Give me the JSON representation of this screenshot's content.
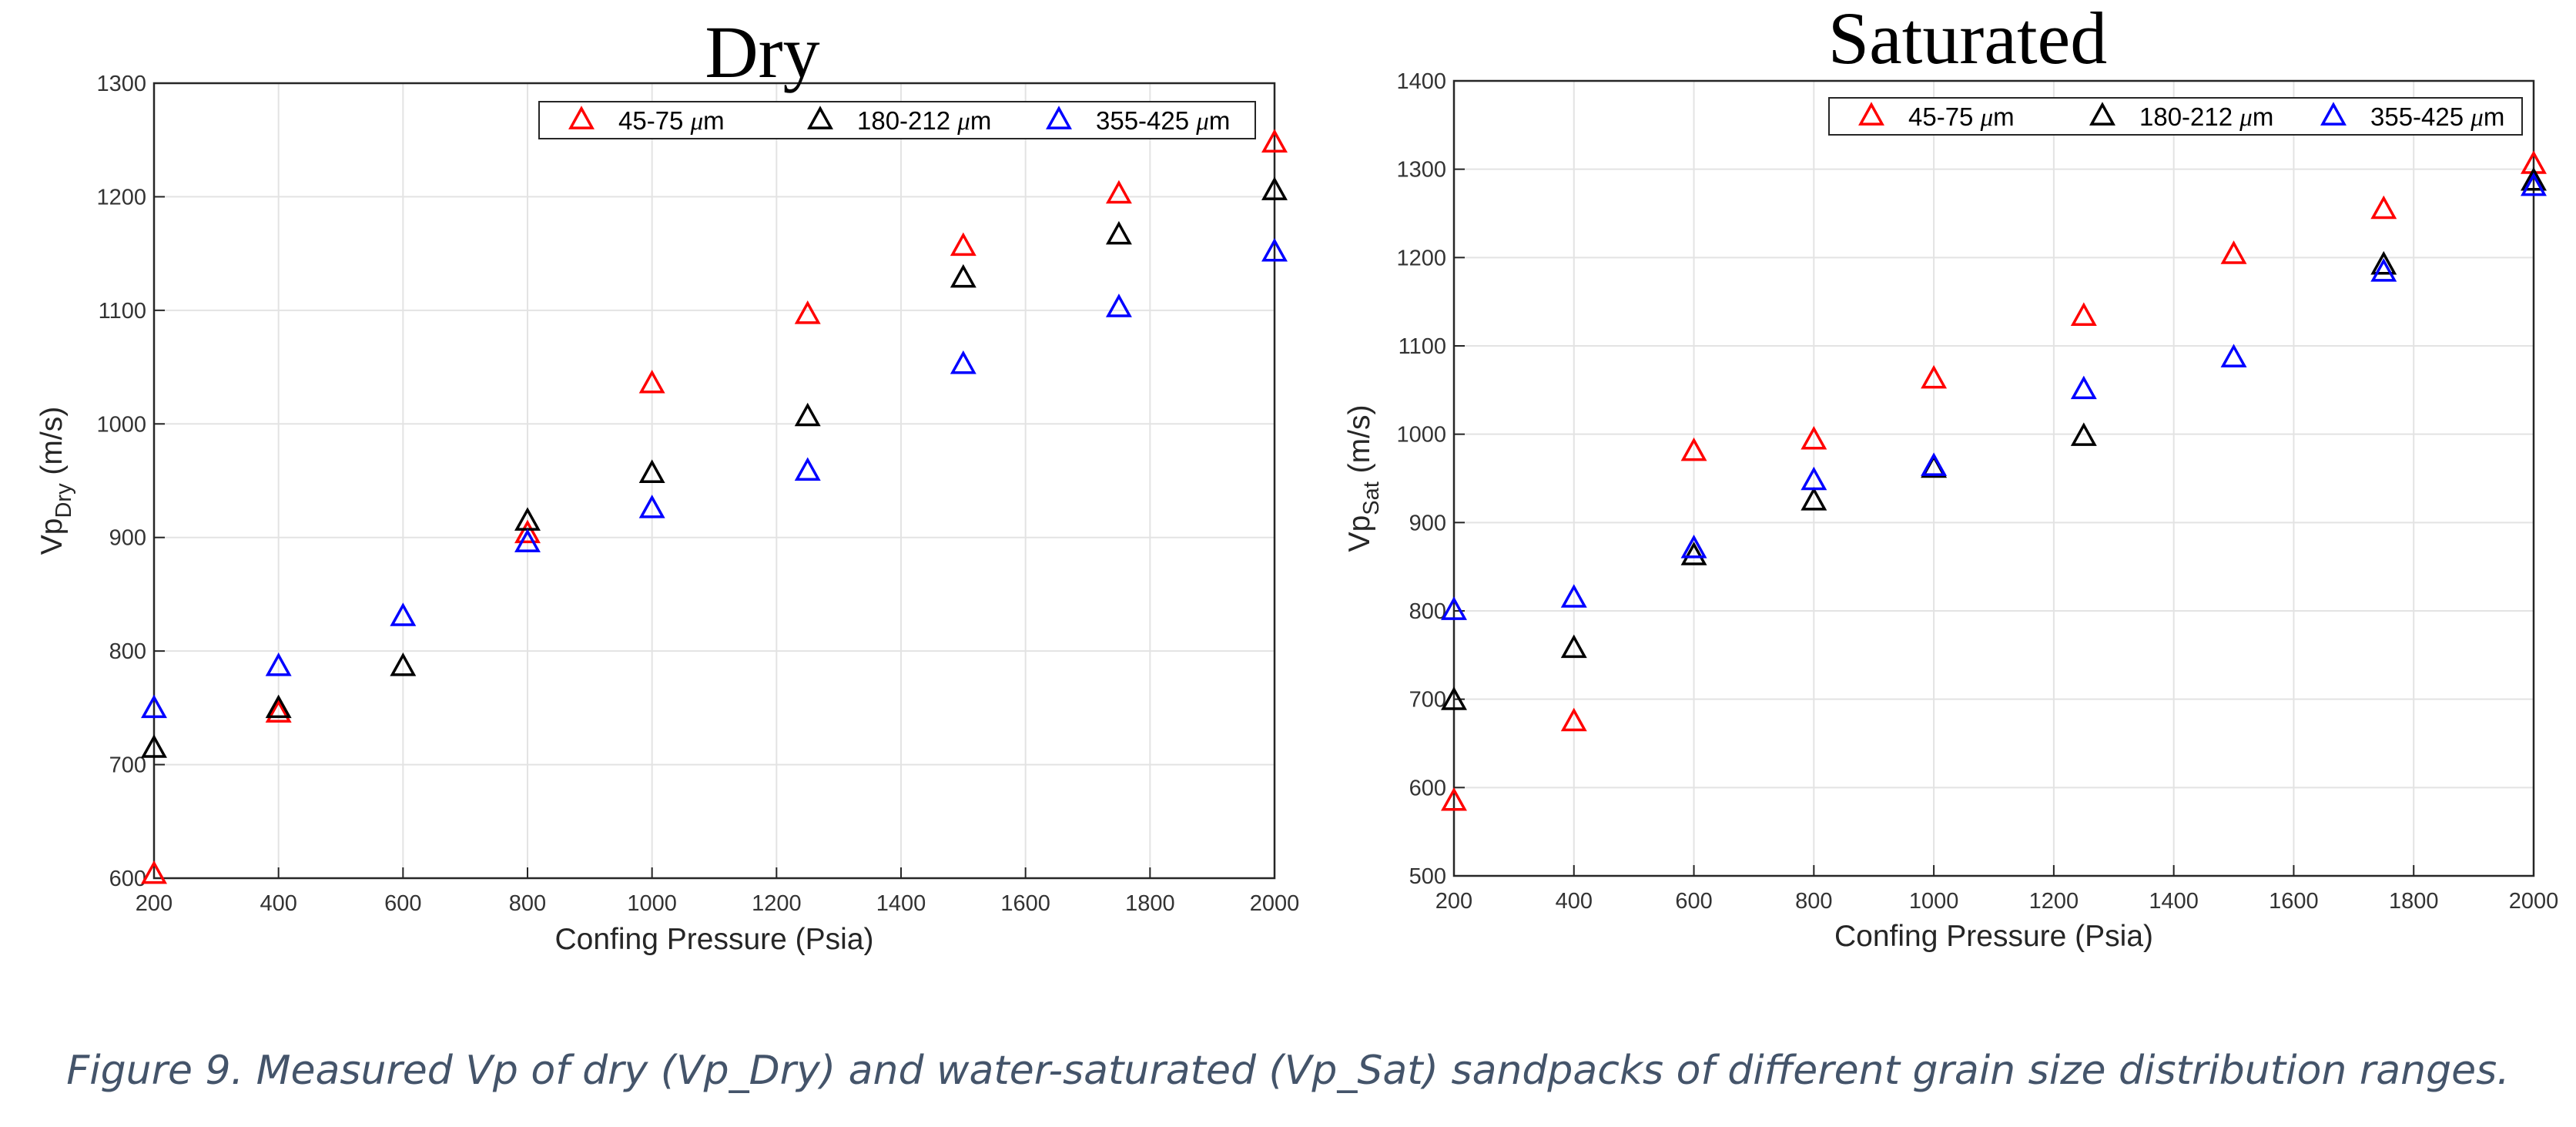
{
  "caption": "Figure 9. Measured Vp of dry (Vp_Dry) and water-saturated (Vp_Sat) sandpacks of different grain size distribution ranges.",
  "colors": {
    "red": "#ff0000",
    "black": "#000000",
    "blue": "#0000ff",
    "grid": "#e3e3e3",
    "axis": "#262626",
    "caption": "#44546a"
  },
  "chart_data": [
    {
      "type": "scatter",
      "title": "Dry",
      "xlabel": "Confing Pressure (Psia)",
      "ylabel_main": "Vp",
      "ylabel_sub": "Dry",
      "ylabel_unit": " (m/s)",
      "xlim": [
        200,
        2000
      ],
      "ylim": [
        600,
        1300
      ],
      "xticks": [
        200,
        400,
        600,
        800,
        1000,
        1200,
        1400,
        1600,
        1800,
        2000
      ],
      "yticks": [
        600,
        700,
        800,
        900,
        1000,
        1100,
        1200,
        1300
      ],
      "grid": true,
      "legend_position": "top-right",
      "series": [
        {
          "name": "45-75",
          "unit_mu": "μ",
          "unit_m": "m",
          "color": "#ff0000",
          "x": [
            200,
            400,
            800,
            1000,
            1250,
            1500,
            1750,
            2000
          ],
          "y": [
            603,
            745,
            903,
            1035,
            1096,
            1156,
            1202,
            1247
          ]
        },
        {
          "name": "180-212",
          "unit_mu": "μ",
          "unit_m": "m",
          "color": "#000000",
          "x": [
            200,
            400,
            600,
            800,
            1000,
            1250,
            1500,
            1750,
            2000
          ],
          "y": [
            714,
            749,
            786,
            914,
            956,
            1006,
            1128,
            1166,
            1205
          ]
        },
        {
          "name": "355-425",
          "unit_mu": "μ",
          "unit_m": "m",
          "color": "#0000ff",
          "x": [
            200,
            400,
            600,
            800,
            1000,
            1250,
            1500,
            1750,
            2000
          ],
          "y": [
            749,
            786,
            830,
            895,
            925,
            958,
            1052,
            1102,
            1151
          ]
        }
      ]
    },
    {
      "type": "scatter",
      "title": "Saturated",
      "xlabel": "Confing Pressure (Psia)",
      "ylabel_main": "Vp",
      "ylabel_sub": "Sat",
      "ylabel_unit": " (m/s)",
      "xlim": [
        200,
        2000
      ],
      "ylim": [
        500,
        1400
      ],
      "xticks": [
        200,
        400,
        600,
        800,
        1000,
        1200,
        1400,
        1600,
        1800,
        2000
      ],
      "yticks": [
        500,
        600,
        700,
        800,
        900,
        1000,
        1100,
        1200,
        1300,
        1400
      ],
      "grid": true,
      "legend_position": "top-right",
      "series": [
        {
          "name": "45-75",
          "unit_mu": "μ",
          "unit_m": "m",
          "color": "#ff0000",
          "x": [
            200,
            400,
            600,
            800,
            1000,
            1250,
            1500,
            1750,
            2000
          ],
          "y": [
            584,
            674,
            980,
            993,
            1062,
            1133,
            1203,
            1254,
            1305
          ]
        },
        {
          "name": "180-212",
          "unit_mu": "μ",
          "unit_m": "m",
          "color": "#000000",
          "x": [
            200,
            400,
            600,
            800,
            1000,
            1250,
            1750,
            2000
          ],
          "y": [
            698,
            757,
            862,
            924,
            961,
            997,
            1191,
            1286
          ]
        },
        {
          "name": "355-425",
          "unit_mu": "μ",
          "unit_m": "m",
          "color": "#0000ff",
          "x": [
            200,
            400,
            600,
            800,
            1000,
            1250,
            1500,
            1750,
            2000
          ],
          "y": [
            800,
            814,
            870,
            947,
            963,
            1050,
            1086,
            1183,
            1280
          ]
        }
      ]
    }
  ]
}
